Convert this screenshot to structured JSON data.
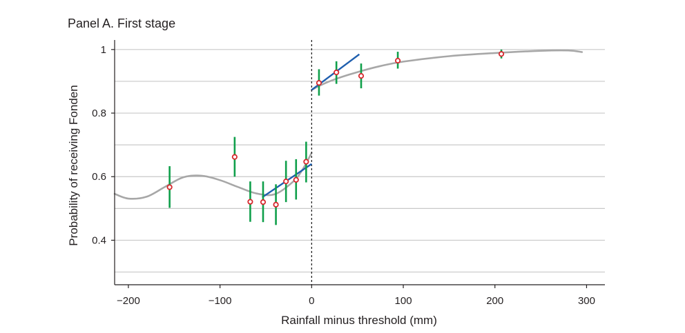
{
  "chart_data": {
    "type": "scatter",
    "title": "Panel A. First stage",
    "xlabel": "Rainfall minus threshold (mm)",
    "ylabel": "Probability of receiving Fonden",
    "xlim": [
      -215,
      320
    ],
    "ylim": [
      0.26,
      1.03
    ],
    "xticks": [
      -200,
      -100,
      0,
      100,
      200,
      300
    ],
    "xtick_labels": [
      "−200",
      "−100",
      "0",
      "100",
      "200",
      "300"
    ],
    "yticks": [
      0.4,
      0.6,
      0.8,
      1.0
    ],
    "ytick_labels": [
      "0.4",
      "0.6",
      "0.8",
      "1"
    ],
    "gridlines_y": [
      0.3,
      0.4,
      0.5,
      0.6,
      0.7,
      0.8,
      0.9,
      1.0
    ],
    "grid": "horizontal",
    "threshold_x": 0,
    "colors": {
      "points_stroke": "#d7262b",
      "error_bars": "#0f9f4a",
      "local_linear_fit": "#1f5fae",
      "polynomial_fit": "#a7a7a7",
      "grid": "#c8c8c8",
      "axis": "#231f20"
    },
    "series": [
      {
        "kind": "points_with_ci",
        "points": [
          {
            "x": -155,
            "y": 0.567,
            "lo": 0.502,
            "hi": 0.633
          },
          {
            "x": -84,
            "y": 0.662,
            "lo": 0.6,
            "hi": 0.725
          },
          {
            "x": -67,
            "y": 0.521,
            "lo": 0.458,
            "hi": 0.585
          },
          {
            "x": -53,
            "y": 0.52,
            "lo": 0.457,
            "hi": 0.585
          },
          {
            "x": -39,
            "y": 0.512,
            "lo": 0.448,
            "hi": 0.576
          },
          {
            "x": -28,
            "y": 0.585,
            "lo": 0.52,
            "hi": 0.65
          },
          {
            "x": -17,
            "y": 0.59,
            "lo": 0.528,
            "hi": 0.655
          },
          {
            "x": -6,
            "y": 0.647,
            "lo": 0.582,
            "hi": 0.71
          },
          {
            "x": 8,
            "y": 0.895,
            "lo": 0.855,
            "hi": 0.938
          },
          {
            "x": 27,
            "y": 0.928,
            "lo": 0.892,
            "hi": 0.963
          },
          {
            "x": 54,
            "y": 0.917,
            "lo": 0.878,
            "hi": 0.956
          },
          {
            "x": 94,
            "y": 0.965,
            "lo": 0.94,
            "hi": 0.993
          },
          {
            "x": 207,
            "y": 0.986,
            "lo": 0.972,
            "hi": 1.0
          }
        ]
      },
      {
        "kind": "local_linear_fit",
        "segments": [
          {
            "x": [
              -54,
              0
            ],
            "y": [
              0.535,
              0.64
            ]
          },
          {
            "x": [
              0,
              52
            ],
            "y": [
              0.873,
              0.985
            ]
          }
        ]
      },
      {
        "kind": "polynomial_fit",
        "segments": [
          {
            "x": [
              -215,
              -200,
              -180,
              -160,
              -140,
              -120,
              -100,
              -80,
              -60,
              -40,
              -20,
              -10,
              0
            ],
            "y": [
              0.546,
              0.531,
              0.537,
              0.568,
              0.598,
              0.603,
              0.589,
              0.567,
              0.547,
              0.545,
              0.585,
              0.622,
              0.675
            ]
          },
          {
            "x": [
              0,
              10,
              25,
              50,
              75,
              100,
              150,
              200,
              250,
              280,
              295
            ],
            "y": [
              0.873,
              0.888,
              0.906,
              0.929,
              0.948,
              0.962,
              0.979,
              0.989,
              0.996,
              0.997,
              0.992
            ]
          }
        ]
      }
    ]
  }
}
